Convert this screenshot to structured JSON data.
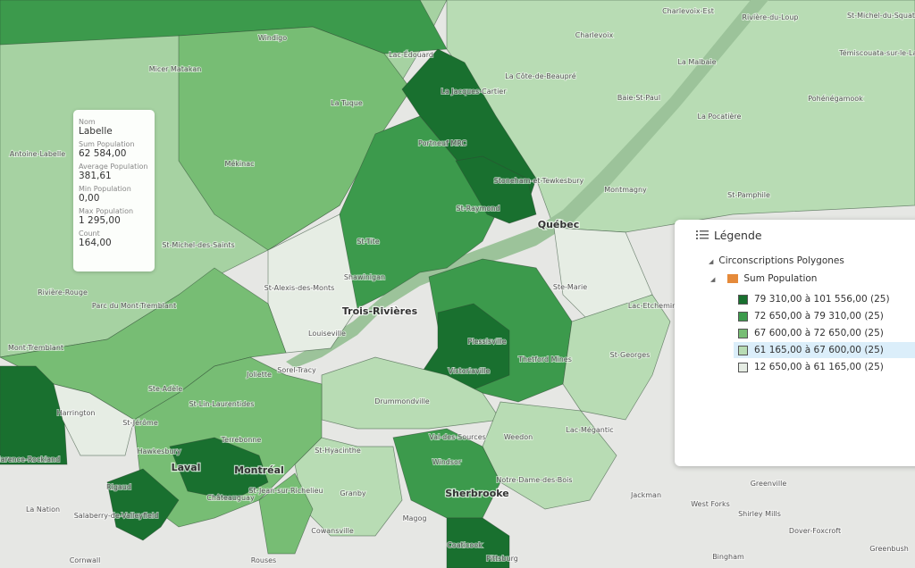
{
  "popup": {
    "fields": [
      {
        "key": "Nom",
        "value": "Labelle"
      },
      {
        "key": "Sum Population",
        "value": "62 584,00"
      },
      {
        "key": "Average Population",
        "value": "381,61"
      },
      {
        "key": "Min Population",
        "value": "0,00"
      },
      {
        "key": "Max Population",
        "value": "1 295,00"
      },
      {
        "key": "Count",
        "value": "164,00"
      }
    ]
  },
  "legend": {
    "title": "Légende",
    "layer": "Circonscriptions Polygones",
    "field": "Sum Population",
    "classes": [
      {
        "label": "79 310,00 à 101 556,00 (25)",
        "color": "#19702f"
      },
      {
        "label": "72 650,00 à 79 310,00 (25)",
        "color": "#3c9a4c"
      },
      {
        "label": "67 600,00 à 72 650,00 (25)",
        "color": "#77bd74"
      },
      {
        "label": "61 165,00 à 67 600,00 (25)",
        "color": "#b8dcb4"
      },
      {
        "label": "12 650,00 à 61 165,00 (25)",
        "color": "#e6ede4"
      }
    ]
  },
  "map_labels": [
    "Windigo",
    "Micer Matakan",
    "La Tuque",
    "Mékinac",
    "Lac-Édouard",
    "La Jacques-Cartier",
    "Charlevoix-Est",
    "Charlevoix",
    "La Côte-de-Beaupré",
    "La Malbaie",
    "Rivière-du-Loup",
    "St-Michel-du-Squatre",
    "Témiscouata-sur-le-Lac",
    "Pohénégamook",
    "Baie-St-Paul",
    "La Pocatière",
    "Montmagny",
    "St-Pamphile",
    "Antoine-Labelle",
    "Portneuf MRC",
    "St-Raymond",
    "Stoneham-et-Tewkesbury",
    "St-Tite",
    "Shawinigan",
    "St-Michel-des-Saints",
    "Rivière-Rouge",
    "Parc du Mont-Tremblant",
    "Mont-Tremblant",
    "St-Alexis-des-Monts",
    "Louiseville",
    "Ste-Marie",
    "Lac-Etchemin",
    "St-Georges",
    "Thetford Mines",
    "Plessisville",
    "Victoriaville",
    "Sorel-Tracy",
    "Joliette",
    "St-Lin-Laurentides",
    "Ste-Adèle",
    "Harrington",
    "St-Jérôme",
    "Drummondville",
    "Hawkesbury",
    "Terrebonne",
    "St-Hyacinthe",
    "Val-des-Sources",
    "Weedon",
    "Windsor",
    "Lac-Mégantic",
    "Granby",
    "Notre-Dame-des-Bois",
    "Clarence-Rockland",
    "Rigaud",
    "Châteauguay",
    "St-Jean-sur-Richelieu",
    "Salaberry-de-Valleyfield",
    "La Nation",
    "Greenville",
    "West Forks",
    "Jackman",
    "Shirley Mills",
    "Dover-Foxcroft",
    "Magog",
    "Cowansville",
    "Coaticook",
    "Pittsburg",
    "Bingham",
    "Greenbush",
    "Cornwall",
    "Rouses"
  ],
  "map_cities": [
    "Québec",
    "Trois-Rivières",
    "Montréal",
    "Laval",
    "Sherbrooke"
  ]
}
